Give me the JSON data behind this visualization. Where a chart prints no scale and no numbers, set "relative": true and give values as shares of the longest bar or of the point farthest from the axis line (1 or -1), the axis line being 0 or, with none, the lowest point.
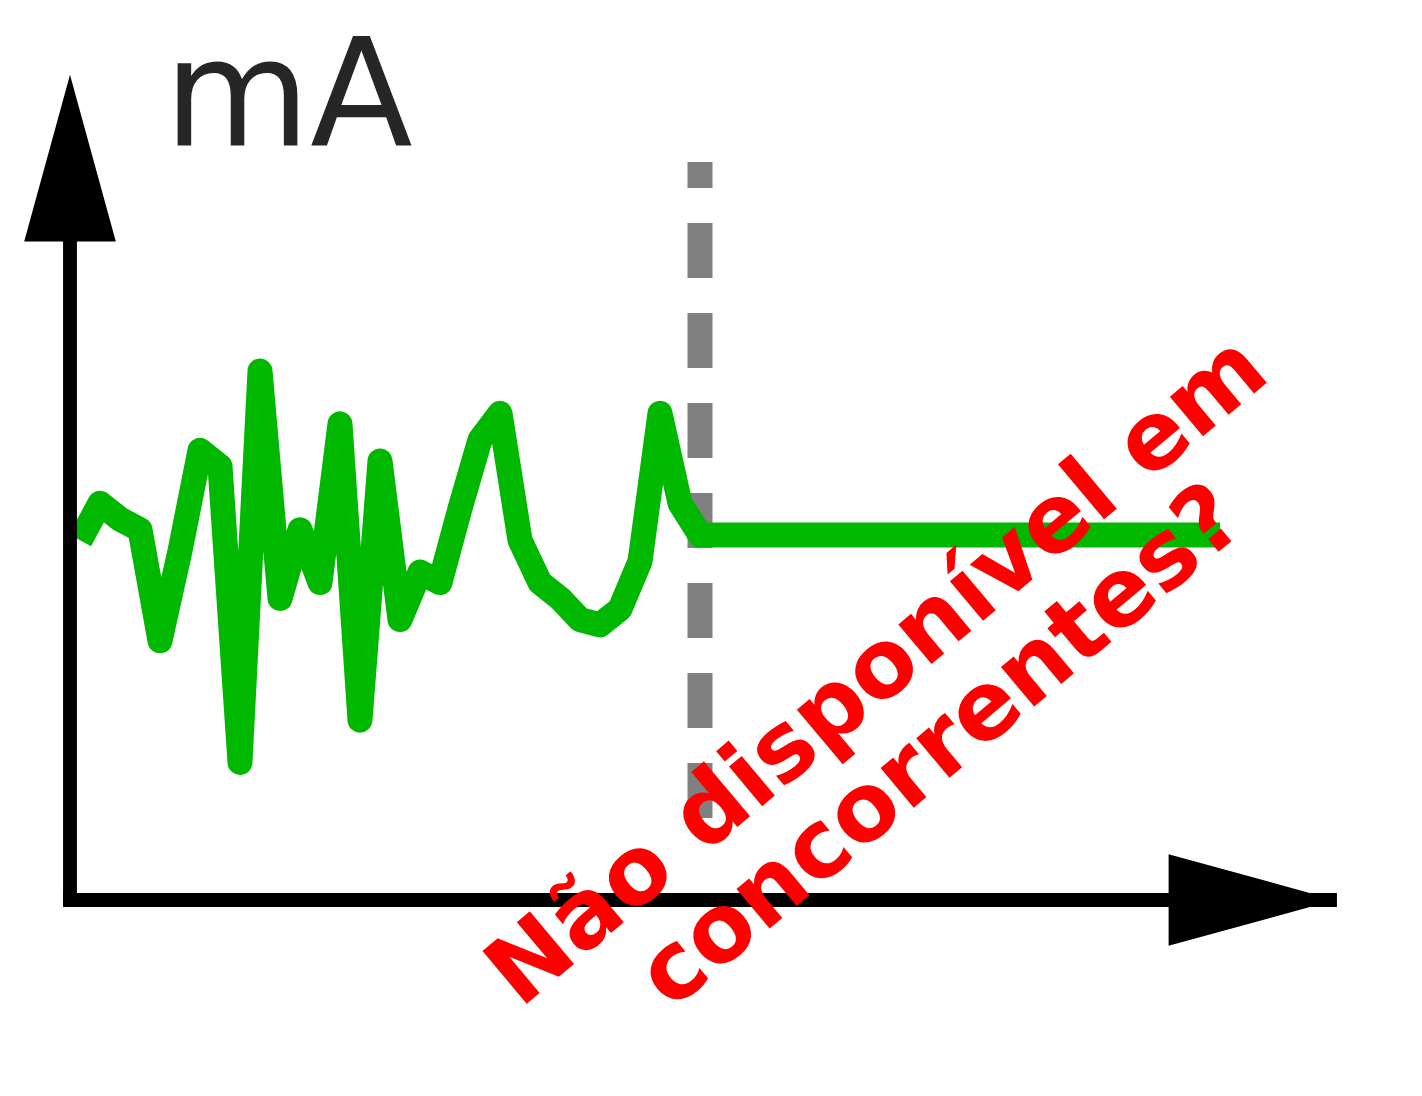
{
  "chart_data": {
    "type": "line",
    "relative": true,
    "ylabel": "mA",
    "categories": [
      null,
      null,
      null,
      null,
      null,
      null,
      null,
      null,
      null,
      null,
      null,
      null,
      null,
      null,
      null,
      null,
      null,
      null,
      null,
      null,
      null,
      null,
      null,
      null,
      null,
      null,
      null,
      null,
      null,
      null,
      null,
      null,
      null,
      null,
      null,
      null,
      null,
      null,
      null,
      null,
      null,
      null,
      null,
      null,
      null,
      null,
      null,
      null,
      null,
      null,
      null,
      null,
      null,
      null,
      null,
      null,
      null,
      null
    ],
    "series": [
      {
        "color": "#00b800",
        "values": [
          0.68,
          0.75,
          0.72,
          0.7,
          0.49,
          0.66,
          0.85,
          0.82,
          0.26,
          1.0,
          0.57,
          0.7,
          0.6,
          0.9,
          0.34,
          0.83,
          0.53,
          0.62,
          0.6,
          0.74,
          0.87,
          0.92,
          0.68,
          0.6,
          0.57,
          0.53,
          0.52,
          0.55,
          0.64,
          0.92,
          0.75,
          0.69,
          0.69,
          0.69,
          0.69,
          0.69,
          0.69,
          0.69,
          0.69,
          0.69,
          0.69,
          0.69,
          0.69,
          0.69,
          0.69,
          0.69,
          0.69,
          0.69,
          0.69,
          0.69,
          0.69,
          0.69,
          0.69,
          0.69,
          0.69,
          0.69,
          0.69,
          0.69
        ]
      }
    ],
    "annotations": [
      "Não disponível em\nconcorrentes?"
    ],
    "legend": false,
    "marker": "none",
    "line_style": "solid"
  }
}
